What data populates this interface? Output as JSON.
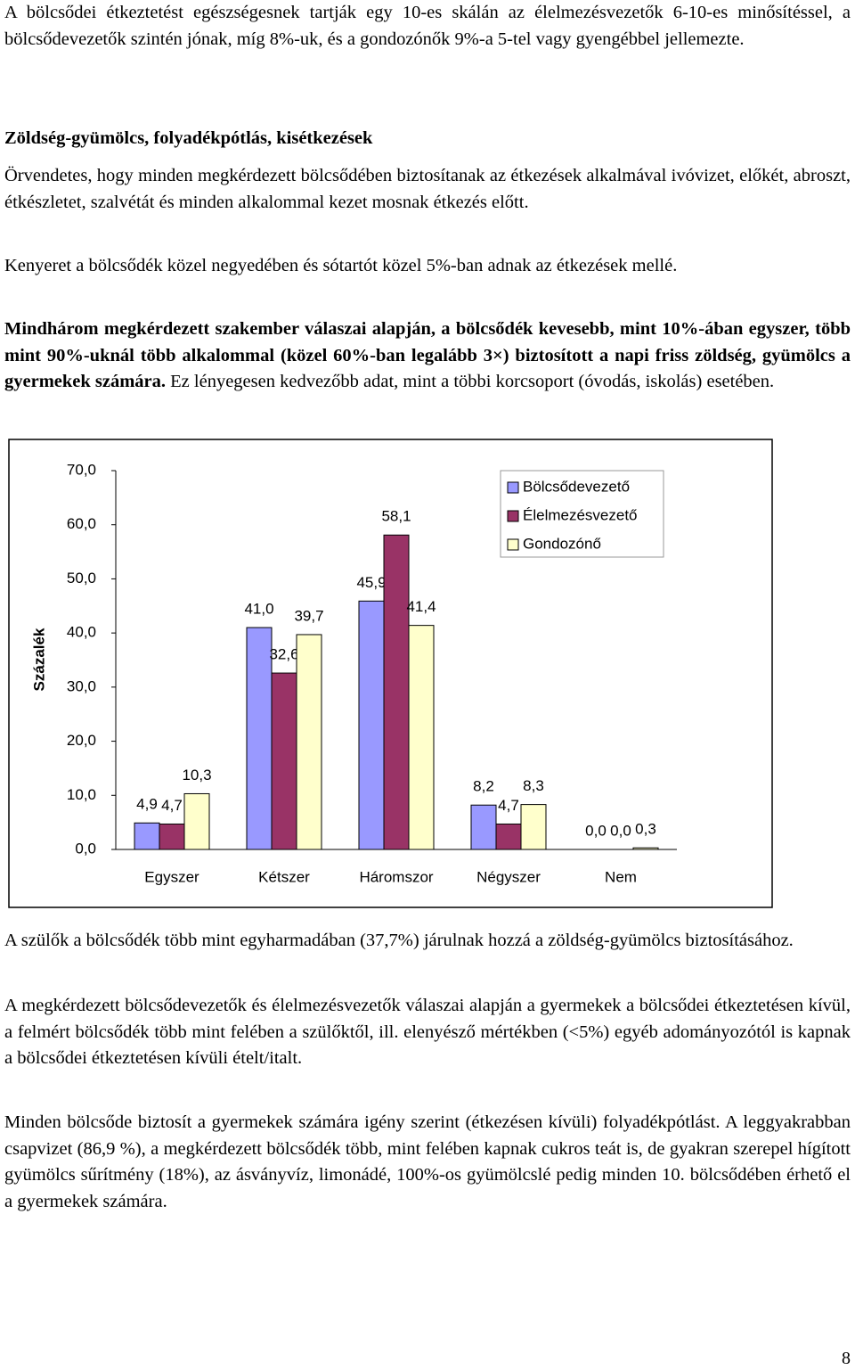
{
  "intro": "A bölcsődei étkeztetést egészségesnek tartják egy 10-es skálán az élelmezésvezetők 6-10-es minősítéssel, a bölcsődevezetők szintén jónak, míg 8%-uk, és a gondozónők 9%-a 5-tel vagy gyengébbel jellemezte.",
  "heading": "Zöldség-gyümölcs, folyadékpótlás, kisétkezések",
  "paragraphs_before": [
    "Örvendetes, hogy minden megkérdezett bölcsődében biztosítanak az étkezések alkalmával ivóvizet, előkét, abroszt, étkészletet, szalvétát és minden alkalommal kezet mosnak étkezés előtt.",
    "Kenyeret a bölcsődék közel negyedében és sótartót közel 5%-ban adnak az étkezések mellé."
  ],
  "highlight": {
    "bold": "Mindhárom megkérdezett szakember válaszai alapján, a bölcsődék kevesebb, mint 10%-ában egyszer, több mint 90%-uknál több alkalommal (közel 60%-ban legalább 3×) biztosított a napi friss zöldség, gyümölcs a gyermekek számára.",
    "normal": "Ez lényegesen kedvezőbb adat, mint a többi korcsoport (óvodás, iskolás) esetében."
  },
  "chart_data": {
    "type": "bar",
    "y_label": "Százalék",
    "categories": [
      "Egyszer",
      "Kétszer",
      "Háromszor",
      "Négyszer",
      "Nem"
    ],
    "series": [
      {
        "name": "Bölcsődevezető",
        "color": "#9999ff",
        "values": [
          4.9,
          41.0,
          45.9,
          8.2,
          0.0
        ],
        "value_labels": [
          "4,9",
          "41,0",
          "45,9",
          "8,2",
          "0,0"
        ]
      },
      {
        "name": "Élelmezésvezető",
        "color": "#993366",
        "values": [
          4.7,
          32.6,
          58.1,
          4.7,
          0.0
        ],
        "value_labels": [
          "4,7",
          "32,6",
          "58,1",
          "4,7",
          "0,0"
        ]
      },
      {
        "name": "Gondozónő",
        "color": "#ffffcc",
        "values": [
          10.3,
          39.7,
          41.4,
          8.3,
          0.3
        ],
        "value_labels": [
          "10,3",
          "39,7",
          "41,4",
          "8,3",
          "0,3"
        ]
      }
    ],
    "ylim": [
      0,
      70
    ],
    "yticks": [
      {
        "value": 0,
        "label": "0,0"
      },
      {
        "value": 10,
        "label": "10,0"
      },
      {
        "value": 20,
        "label": "20,0"
      },
      {
        "value": 30,
        "label": "30,0"
      },
      {
        "value": 40,
        "label": "40,0"
      },
      {
        "value": 50,
        "label": "50,0"
      },
      {
        "value": 60,
        "label": "60,0"
      },
      {
        "value": 70,
        "label": "70,0"
      }
    ],
    "legend": "upper right",
    "grid": false
  },
  "paragraphs_after": [
    "A szülők a bölcsődék több mint egyharmadában (37,7%) járulnak hozzá a zöldség-gyümölcs biztosításához.",
    "A megkérdezett bölcsődevezetők és élelmezésvezetők válaszai alapján a gyermekek a bölcsődei étkeztetésen kívül, a felmért bölcsődék több mint felében a szülőktől, ill. elenyésző mértékben (<5%) egyéb adományozótól is kapnak a bölcsődei étkeztetésen kívüli ételt/italt.",
    "Minden bölcsőde biztosít a gyermekek számára igény szerint (étkezésen kívüli) folyadékpótlást. A leggyakrabban csapvizet (86,9 %), a megkérdezett bölcsődék több, mint felében kapnak cukros teát is, de gyakran szerepel hígított gyümölcs sűrítmény (18%), az ásványvíz, limonádé, 100%-os gyümölcslé pedig minden 10. bölcsődében érhető el a gyermekek számára."
  ],
  "page_number": "8"
}
